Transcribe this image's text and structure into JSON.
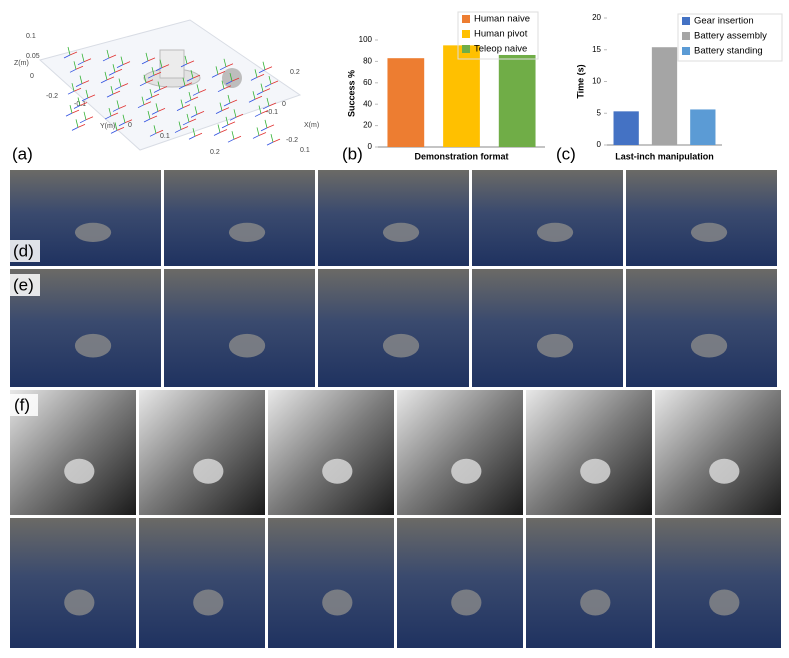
{
  "chart_data": [
    {
      "type": "bar",
      "ylabel": "Success %",
      "xlabel": "Demonstration format",
      "series": [
        {
          "name": "Human naive",
          "color": "#ed7d31",
          "values": [
            83
          ]
        },
        {
          "name": "Human pivot",
          "color": "#ffc000",
          "values": [
            95
          ]
        },
        {
          "name": "Teleop naive",
          "color": "#70ad47",
          "values": [
            86
          ]
        }
      ],
      "ylim": [
        0,
        100
      ],
      "yticks": [
        0,
        20,
        40,
        60,
        80,
        100
      ],
      "legend": "upper right"
    },
    {
      "type": "bar",
      "ylabel": "Time (s)",
      "xlabel": "Last-inch manipulation",
      "series": [
        {
          "name": "Gear insertion",
          "color": "#4472c4",
          "values": [
            5.3
          ]
        },
        {
          "name": "Battery assembly",
          "color": "#a5a5a5",
          "values": [
            15.4
          ]
        },
        {
          "name": "Battery standing",
          "color": "#5b9bd5",
          "values": [
            5.6
          ]
        }
      ],
      "ylim": [
        0,
        20
      ],
      "yticks": [
        0,
        5,
        10,
        15,
        20
      ],
      "legend": "upper right"
    }
  ],
  "panel_a": {
    "z_label": "Z(m)",
    "y_label": "Y(m)",
    "x_label": "X(m)",
    "z_ticks": [
      "0.1",
      "0.05",
      "0"
    ],
    "y_ticks": [
      "-0.2",
      "-0.1",
      "0",
      "0.1",
      "0.2"
    ],
    "x_ticks": [
      "0.2",
      "-0.1",
      "0",
      "0.1",
      "-0.2"
    ]
  },
  "panel_labels": [
    "(a)",
    "(b)",
    "(c)",
    "(d)",
    "(e)",
    "(f)"
  ]
}
